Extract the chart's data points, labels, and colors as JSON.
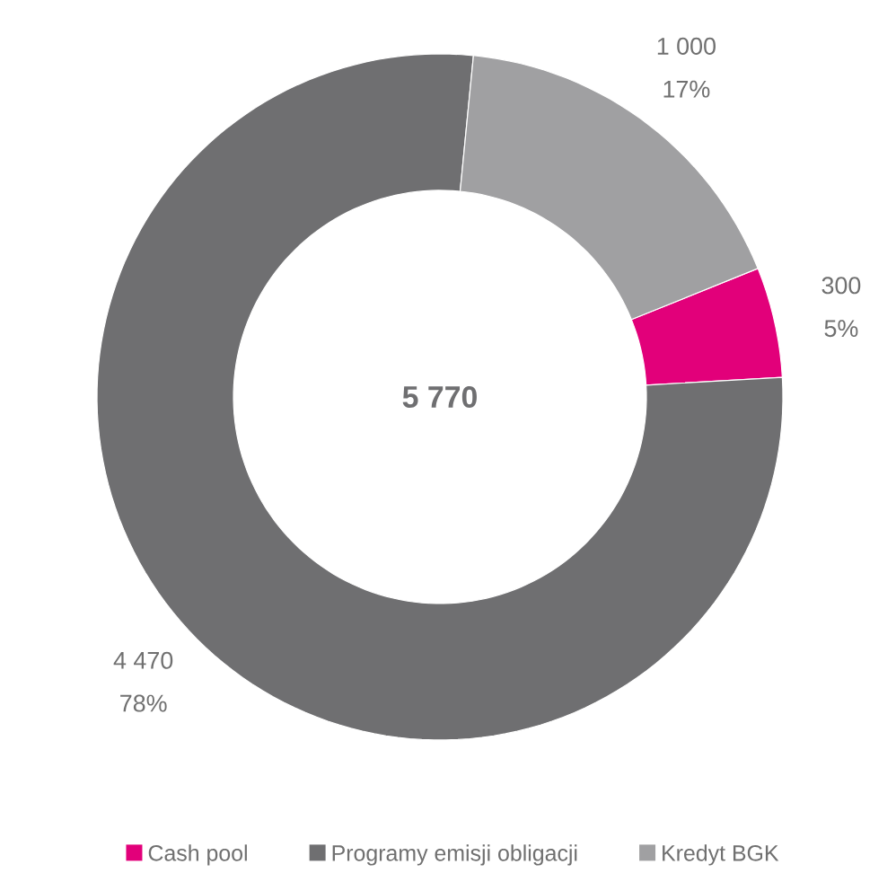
{
  "chart_data": {
    "type": "donut",
    "categories": [
      "Cash pool",
      "Programy emisji obligacji",
      "Kredyt BGK"
    ],
    "values": [
      300,
      4470,
      1000
    ],
    "colors": [
      "#e2007a",
      "#6f6f71",
      "#a0a0a2"
    ],
    "value_labels": [
      "300",
      "4 470",
      "1 000"
    ],
    "annotations": [
      "5%",
      "78%",
      "17%",
      "5 770"
    ],
    "legend": "bottom"
  }
}
